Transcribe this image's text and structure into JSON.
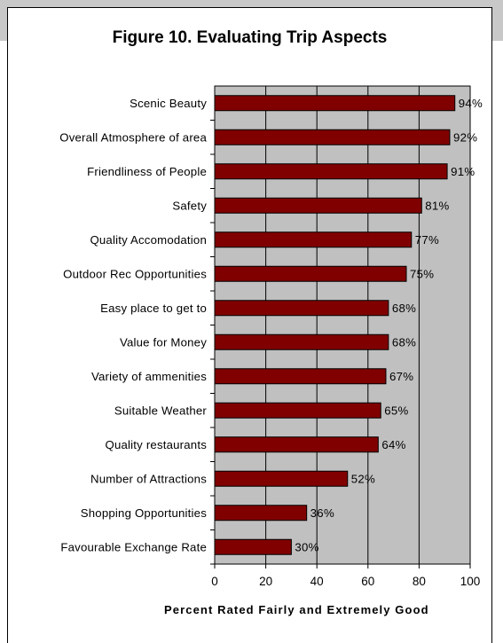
{
  "colors": {
    "plot_bg": "#c0c0c0",
    "bar_fill": "#800000",
    "bar_border": "#000000",
    "gridline": "#000000"
  },
  "chart_data": {
    "type": "bar",
    "orientation": "horizontal",
    "title": "Figure 10.  Evaluating Trip Aspects",
    "xlabel": "Percent Rated Fairly and Extremely Good",
    "ylabel": "",
    "xlim": [
      0,
      100
    ],
    "xticks": [
      0,
      20,
      40,
      60,
      80,
      100
    ],
    "grid": true,
    "categories": [
      "Scenic Beauty",
      "Overall Atmosphere of area",
      "Friendliness of People",
      "Safety",
      "Quality Accomodation",
      "Outdoor Rec Opportunities",
      "Easy place to get to",
      "Value for Money",
      "Variety of ammenities",
      "Suitable Weather",
      "Quality restaurants",
      "Number of Attractions",
      "Shopping Opportunities",
      "Favourable Exchange Rate"
    ],
    "values": [
      94,
      92,
      91,
      81,
      77,
      75,
      68,
      68,
      67,
      65,
      64,
      52,
      36,
      30
    ],
    "value_labels": [
      "94%",
      "92%",
      "91%",
      "81%",
      "77%",
      "75%",
      "68%",
      "68%",
      "67%",
      "65%",
      "64%",
      "52%",
      "36%",
      "30%"
    ]
  }
}
